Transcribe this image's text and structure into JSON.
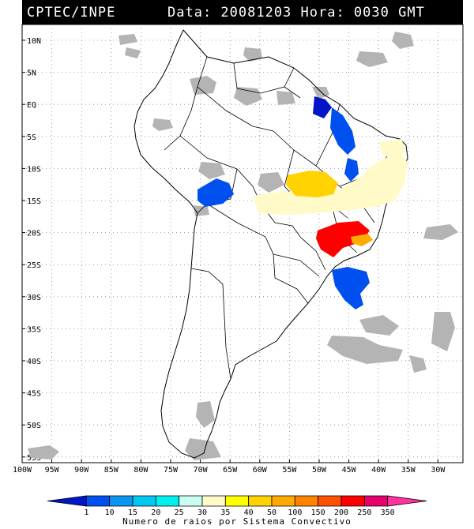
{
  "header": {
    "org": "CPTEC/INPE",
    "datetime": "Data: 20081203 Hora: 0030 GMT"
  },
  "lat_labels": [
    "10N",
    "5N",
    "EQ",
    "5S",
    "10S",
    "15S",
    "20S",
    "25S",
    "30S",
    "35S",
    "40S",
    "45S",
    "50S",
    "55S"
  ],
  "lon_labels": [
    "100W",
    "95W",
    "90W",
    "85W",
    "80W",
    "75W",
    "70W",
    "65W",
    "60W",
    "55W",
    "50W",
    "45W",
    "40W",
    "35W",
    "30W"
  ],
  "legend": {
    "labels": [
      "1",
      "10",
      "15",
      "20",
      "25",
      "30",
      "35",
      "40",
      "50",
      "100",
      "150",
      "200",
      "250",
      "350"
    ],
    "colors": [
      "#0014c8",
      "#0050f0",
      "#0a96f0",
      "#00c8f0",
      "#00f0f0",
      "#c8fff0",
      "#fffac8",
      "#ffff00",
      "#ffd200",
      "#ffaa00",
      "#ff8200",
      "#ff5000",
      "#ff0000",
      "#e6006e",
      "#ff32a0"
    ],
    "caption": "Numero de raios por Sistema Convectivo"
  },
  "map_features": {
    "cells": [
      {
        "color": "#0014c8",
        "label": "amazon-mouth-cluster"
      },
      {
        "color": "#0050f0",
        "label": "northeast-cluster"
      },
      {
        "color": "#0050f0",
        "label": "bolivia-cluster"
      },
      {
        "color": "#0050f0",
        "label": "south-atlantic-cluster"
      },
      {
        "color": "#ffd200",
        "label": "central-brazil-cluster"
      },
      {
        "color": "#fffac8",
        "label": "pale-yellow-band"
      },
      {
        "color": "#ff0000",
        "label": "southeast-red-cluster"
      },
      {
        "color": "#ffaa00",
        "label": "coastal-orange-cluster"
      }
    ]
  }
}
